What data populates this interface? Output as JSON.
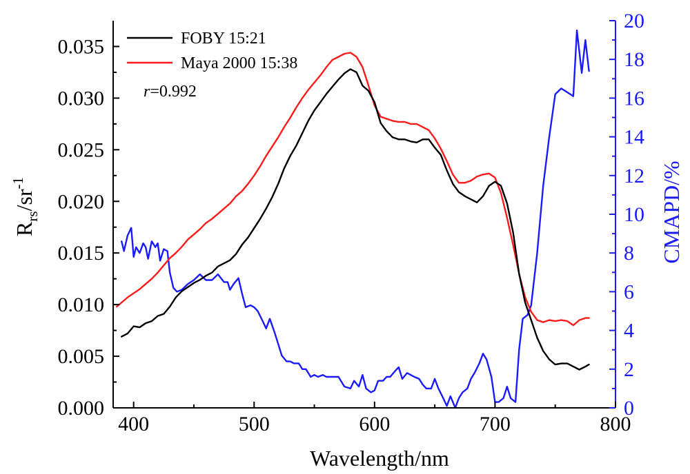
{
  "chart_data": {
    "type": "line",
    "xlabel": "Wavelength/nm",
    "ylabel_main": "R",
    "ylabel_sub": "rs",
    "ylabel_rest": "/sr",
    "ylabel_sup": "-1",
    "y2label": "CMAPD/%",
    "xlim": [
      383,
      800
    ],
    "ylim": [
      0,
      0.0375
    ],
    "y2lim": [
      0,
      20
    ],
    "x_ticks": [
      "400",
      "500",
      "600",
      "700",
      "800"
    ],
    "y_ticks": [
      "0.000",
      "0.005",
      "0.010",
      "0.015",
      "0.020",
      "0.025",
      "0.030",
      "0.035"
    ],
    "y2_ticks": [
      "0",
      "2",
      "4",
      "6",
      "8",
      "10",
      "12",
      "14",
      "16",
      "18",
      "20"
    ],
    "annotation_italic": "r",
    "annotation_rest": "=0.992",
    "legend_position": "top-left",
    "colors": {
      "black": "#000000",
      "red": "#ff1a1a",
      "blue": "#1a1aff"
    },
    "series": [
      {
        "name": "FOBY 15:21",
        "axis": "left",
        "color": "#000000",
        "x": [
          390,
          395,
          400,
          405,
          410,
          415,
          420,
          425,
          430,
          435,
          440,
          445,
          450,
          455,
          460,
          465,
          470,
          475,
          480,
          485,
          490,
          495,
          500,
          505,
          510,
          515,
          520,
          525,
          530,
          535,
          540,
          545,
          550,
          555,
          560,
          565,
          570,
          575,
          580,
          585,
          590,
          595,
          600,
          605,
          610,
          615,
          620,
          625,
          630,
          635,
          640,
          645,
          650,
          655,
          660,
          665,
          670,
          675,
          680,
          685,
          690,
          695,
          700,
          705,
          710,
          715,
          720,
          725,
          730,
          735,
          740,
          745,
          750,
          755,
          760,
          765,
          770,
          775,
          778
        ],
        "y": [
          0.0069,
          0.0072,
          0.0079,
          0.0078,
          0.0082,
          0.0084,
          0.0089,
          0.0091,
          0.0098,
          0.0107,
          0.0113,
          0.0117,
          0.0121,
          0.0124,
          0.0128,
          0.0131,
          0.0137,
          0.014,
          0.0143,
          0.0149,
          0.0158,
          0.0165,
          0.0174,
          0.0183,
          0.0193,
          0.0204,
          0.0217,
          0.0232,
          0.0244,
          0.0254,
          0.0266,
          0.0278,
          0.0288,
          0.0296,
          0.0304,
          0.0311,
          0.0318,
          0.0324,
          0.0328,
          0.0325,
          0.0312,
          0.0307,
          0.0296,
          0.0276,
          0.0268,
          0.0262,
          0.026,
          0.026,
          0.0258,
          0.0257,
          0.026,
          0.026,
          0.0252,
          0.0245,
          0.023,
          0.0217,
          0.0209,
          0.0205,
          0.0202,
          0.0199,
          0.0205,
          0.0215,
          0.0219,
          0.0215,
          0.0198,
          0.017,
          0.013,
          0.0102,
          0.0085,
          0.0068,
          0.0055,
          0.0047,
          0.0042,
          0.0043,
          0.0043,
          0.004,
          0.0037,
          0.004,
          0.0042
        ]
      },
      {
        "name": "Maya 2000 15:38",
        "axis": "left",
        "color": "#ff1a1a",
        "x": [
          386,
          390,
          395,
          400,
          405,
          410,
          415,
          420,
          425,
          430,
          435,
          440,
          445,
          450,
          455,
          460,
          465,
          470,
          475,
          480,
          485,
          490,
          495,
          500,
          505,
          510,
          515,
          520,
          525,
          530,
          535,
          540,
          545,
          550,
          555,
          560,
          565,
          570,
          575,
          580,
          585,
          590,
          595,
          600,
          605,
          610,
          615,
          620,
          625,
          630,
          635,
          640,
          645,
          650,
          655,
          660,
          665,
          670,
          675,
          680,
          685,
          690,
          695,
          700,
          705,
          710,
          715,
          720,
          725,
          730,
          735,
          740,
          745,
          750,
          755,
          760,
          765,
          770,
          775,
          778
        ],
        "y": [
          0.0098,
          0.0102,
          0.0107,
          0.0111,
          0.0115,
          0.012,
          0.0125,
          0.0131,
          0.0138,
          0.0145,
          0.015,
          0.0156,
          0.0163,
          0.0168,
          0.0173,
          0.0179,
          0.0183,
          0.0188,
          0.0193,
          0.0198,
          0.0205,
          0.021,
          0.0217,
          0.0225,
          0.0234,
          0.0244,
          0.0253,
          0.0262,
          0.0272,
          0.0281,
          0.0291,
          0.03,
          0.0308,
          0.0315,
          0.0322,
          0.033,
          0.0337,
          0.034,
          0.0343,
          0.0344,
          0.034,
          0.033,
          0.0312,
          0.0293,
          0.0282,
          0.028,
          0.0278,
          0.0277,
          0.0277,
          0.0275,
          0.0275,
          0.0272,
          0.0269,
          0.0261,
          0.0251,
          0.0239,
          0.0226,
          0.0218,
          0.0218,
          0.022,
          0.0224,
          0.0226,
          0.0227,
          0.0223,
          0.0208,
          0.0184,
          0.0158,
          0.013,
          0.0107,
          0.0093,
          0.0085,
          0.0083,
          0.0085,
          0.0084,
          0.0085,
          0.0084,
          0.008,
          0.0085,
          0.0087,
          0.0087
        ]
      },
      {
        "name": "CMAPD",
        "axis": "right",
        "color": "#1a1aff",
        "x": [
          390,
          392,
          395,
          398,
          400,
          402,
          405,
          408,
          410,
          412,
          415,
          418,
          420,
          422,
          425,
          428,
          430,
          433,
          436,
          440,
          445,
          450,
          455,
          460,
          465,
          470,
          475,
          478,
          480,
          483,
          487,
          490,
          493,
          497,
          500,
          503,
          507,
          510,
          513,
          517,
          520,
          523,
          527,
          530,
          533,
          537,
          540,
          543,
          547,
          550,
          553,
          557,
          560,
          565,
          570,
          575,
          580,
          583,
          587,
          590,
          593,
          597,
          600,
          603,
          607,
          610,
          613,
          617,
          620,
          623,
          627,
          630,
          633,
          637,
          640,
          643,
          647,
          650,
          653,
          657,
          660,
          663,
          667,
          670,
          673,
          677,
          680,
          683,
          687,
          690,
          693,
          697,
          700,
          703,
          707,
          710,
          713,
          717,
          720,
          723,
          727,
          730,
          735,
          740,
          745,
          750,
          755,
          760,
          765,
          768,
          772,
          775,
          778
        ],
        "y": [
          8.6,
          8.1,
          8.9,
          9.3,
          7.8,
          8.3,
          8.0,
          8.5,
          8.3,
          7.7,
          8.6,
          8.3,
          8.5,
          7.6,
          8.2,
          8.1,
          7.0,
          6.2,
          6.0,
          6.1,
          6.4,
          6.6,
          6.9,
          6.6,
          6.6,
          6.9,
          6.5,
          6.5,
          6.1,
          6.4,
          6.7,
          5.9,
          5.2,
          5.3,
          5.2,
          5.0,
          4.5,
          4.1,
          4.6,
          3.9,
          3.3,
          2.7,
          2.4,
          2.4,
          2.3,
          2.3,
          2.0,
          2.0,
          1.6,
          1.7,
          1.6,
          1.7,
          1.6,
          1.6,
          1.6,
          1.1,
          1.0,
          1.4,
          1.1,
          1.7,
          1.0,
          0.8,
          0.9,
          1.4,
          1.4,
          1.6,
          1.6,
          1.9,
          2.1,
          1.5,
          1.8,
          1.7,
          1.6,
          1.5,
          1.2,
          1.0,
          1.0,
          1.5,
          1.0,
          0.5,
          0.1,
          0.6,
          0.0,
          0.5,
          0.8,
          1.0,
          1.5,
          1.8,
          2.3,
          2.8,
          2.5,
          1.6,
          0.3,
          0.3,
          0.5,
          1.1,
          0.5,
          0.3,
          3.0,
          4.6,
          4.8,
          5.3,
          8.0,
          11.5,
          14.0,
          16.2,
          16.5,
          16.3,
          16.1,
          19.5,
          17.3,
          19.0,
          17.4
        ]
      }
    ]
  }
}
